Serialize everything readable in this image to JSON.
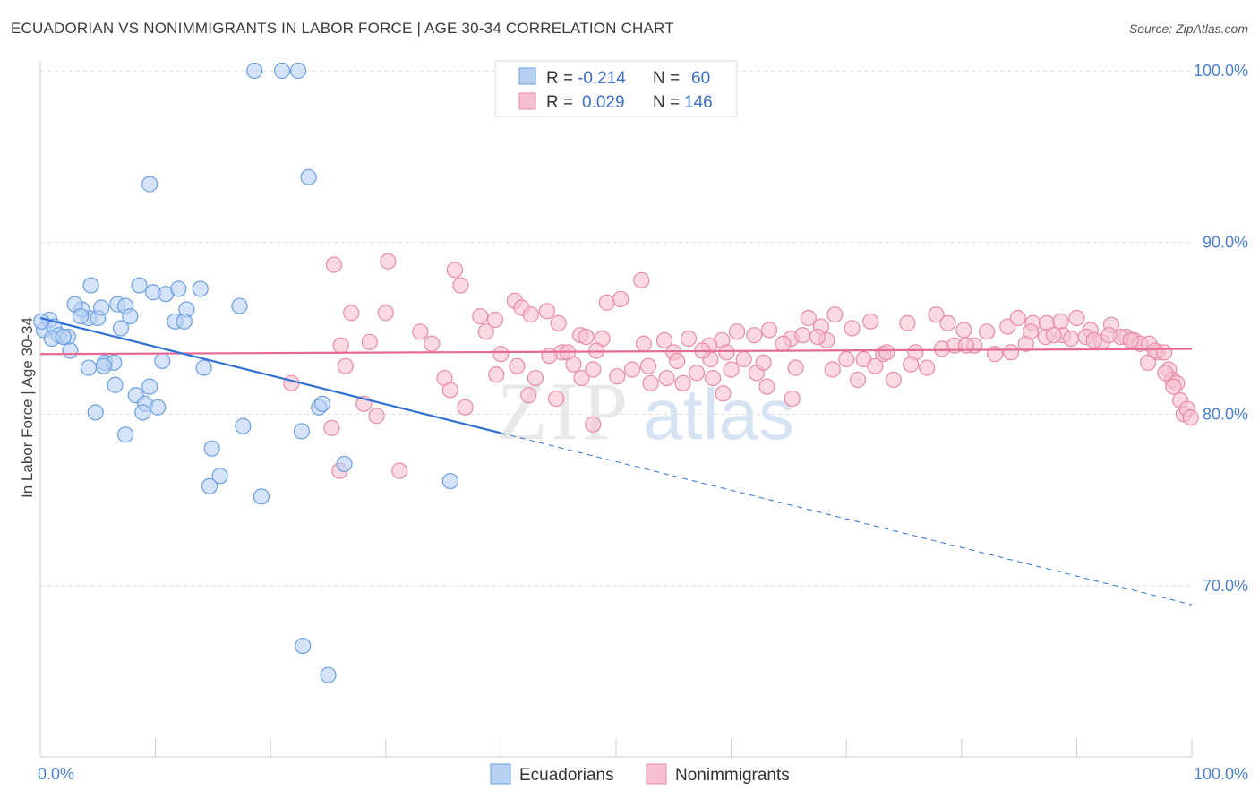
{
  "title": "ECUADORIAN VS NONIMMIGRANTS IN LABOR FORCE | AGE 30-34 CORRELATION CHART",
  "source": "Source: ZipAtlas.com",
  "watermark": {
    "zip": "ZIP",
    "atlas": "atlas"
  },
  "colors": {
    "blue_fill": "#b8d1f3",
    "blue_stroke": "#6a9ee0",
    "blue_line": "#2f6fd6",
    "pink_fill": "#f7bfd1",
    "pink_stroke": "#e68aa8",
    "pink_line": "#e46a92",
    "grid": "#dddddd",
    "tick_text": "#4a7fd0"
  },
  "legend": {
    "rows": [
      {
        "r_label": "R =",
        "r_value": "-0.214",
        "n_label": "N =",
        "n_value": "60",
        "series": "blue"
      },
      {
        "r_label": "R =",
        "r_value": "0.029",
        "n_label": "N =",
        "n_value": "146",
        "series": "pink"
      }
    ]
  },
  "bottom_legend": [
    "Ecuadorians",
    "Nonimmigrants"
  ],
  "chart_data": {
    "type": "scatter",
    "title": "ECUADORIAN VS NONIMMIGRANTS IN LABOR FORCE | AGE 30-34 CORRELATION CHART",
    "xlabel": "",
    "ylabel": "In Labor Force | Age 30-34",
    "xlim": [
      0,
      100
    ],
    "ylim": [
      61,
      104
    ],
    "x_tick_labels": [
      "0.0%",
      "100.0%"
    ],
    "y_ticks": [
      70,
      80,
      90,
      100
    ],
    "y_tick_labels": [
      "70.0%",
      "80.0%",
      "90.0%",
      "100.0%"
    ],
    "grid": true,
    "legend_position": "top-center",
    "series": [
      {
        "name": "Ecuadorians",
        "color": "#b8d1f3",
        "r": -0.214,
        "n": 60,
        "trend": {
          "x0": 0,
          "y0": 85.6,
          "x1": 40,
          "y1": 78.9,
          "dash_x1": 100,
          "dash_y1": 68.9
        },
        "points": [
          [
            0.3,
            84.9
          ],
          [
            0.8,
            85.5
          ],
          [
            1.2,
            85.1
          ],
          [
            1.6,
            84.6
          ],
          [
            2.4,
            84.5
          ],
          [
            1.0,
            84.4
          ],
          [
            2.6,
            83.7
          ],
          [
            4.2,
            85.6
          ],
          [
            3.6,
            86.1
          ],
          [
            3.0,
            86.4
          ],
          [
            3.5,
            85.7
          ],
          [
            4.4,
            87.5
          ],
          [
            5.0,
            85.6
          ],
          [
            5.3,
            86.2
          ],
          [
            6.7,
            86.4
          ],
          [
            7.4,
            86.3
          ],
          [
            7.8,
            85.7
          ],
          [
            7.0,
            85.0
          ],
          [
            8.6,
            87.5
          ],
          [
            9.8,
            87.1
          ],
          [
            10.9,
            87.0
          ],
          [
            12.0,
            87.3
          ],
          [
            13.9,
            87.3
          ],
          [
            12.7,
            86.1
          ],
          [
            11.7,
            85.4
          ],
          [
            12.5,
            85.4
          ],
          [
            4.2,
            82.7
          ],
          [
            5.6,
            83.0
          ],
          [
            6.4,
            83.0
          ],
          [
            5.5,
            82.8
          ],
          [
            6.5,
            81.7
          ],
          [
            8.3,
            81.1
          ],
          [
            9.1,
            80.6
          ],
          [
            9.5,
            81.6
          ],
          [
            8.9,
            80.1
          ],
          [
            10.2,
            80.4
          ],
          [
            4.8,
            80.1
          ],
          [
            7.4,
            78.8
          ],
          [
            10.6,
            83.1
          ],
          [
            14.2,
            82.7
          ],
          [
            17.3,
            86.3
          ],
          [
            14.9,
            78.0
          ],
          [
            17.6,
            79.3
          ],
          [
            15.6,
            76.4
          ],
          [
            14.7,
            75.8
          ],
          [
            19.2,
            75.2
          ],
          [
            22.7,
            79.0
          ],
          [
            24.2,
            80.4
          ],
          [
            24.5,
            80.6
          ],
          [
            26.4,
            77.1
          ],
          [
            35.6,
            76.1
          ],
          [
            9.5,
            93.4
          ],
          [
            23.3,
            93.8
          ],
          [
            18.6,
            100.0
          ],
          [
            21.0,
            100.0
          ],
          [
            22.4,
            100.0
          ],
          [
            22.8,
            66.5
          ],
          [
            25.0,
            64.8
          ],
          [
            0.1,
            85.4
          ],
          [
            2.0,
            84.5
          ]
        ]
      },
      {
        "name": "Nonimmigrants",
        "color": "#f7bfd1",
        "r": 0.029,
        "n": 146,
        "trend": {
          "x0": 0,
          "y0": 83.5,
          "x1": 100,
          "y1": 83.8
        },
        "points": [
          [
            25.5,
            88.7
          ],
          [
            30.2,
            88.9
          ],
          [
            36.0,
            88.4
          ],
          [
            36.5,
            87.5
          ],
          [
            52.2,
            87.8
          ],
          [
            27.0,
            85.9
          ],
          [
            30.0,
            85.9
          ],
          [
            38.2,
            85.7
          ],
          [
            39.5,
            85.5
          ],
          [
            41.2,
            86.6
          ],
          [
            41.8,
            86.2
          ],
          [
            44.0,
            86.0
          ],
          [
            49.2,
            86.5
          ],
          [
            50.4,
            86.7
          ],
          [
            33.0,
            84.8
          ],
          [
            34.0,
            84.1
          ],
          [
            38.7,
            84.8
          ],
          [
            42.6,
            85.8
          ],
          [
            45.0,
            85.3
          ],
          [
            45.3,
            83.6
          ],
          [
            46.9,
            84.6
          ],
          [
            47.4,
            84.5
          ],
          [
            48.8,
            84.4
          ],
          [
            54.2,
            84.3
          ],
          [
            56.3,
            84.4
          ],
          [
            59.2,
            84.3
          ],
          [
            60.5,
            84.8
          ],
          [
            62.0,
            84.6
          ],
          [
            63.3,
            84.9
          ],
          [
            65.2,
            84.4
          ],
          [
            66.7,
            85.6
          ],
          [
            67.8,
            85.1
          ],
          [
            70.5,
            85.0
          ],
          [
            69.0,
            85.8
          ],
          [
            72.1,
            85.4
          ],
          [
            75.3,
            85.3
          ],
          [
            77.8,
            85.8
          ],
          [
            78.8,
            85.3
          ],
          [
            80.2,
            84.9
          ],
          [
            82.2,
            84.8
          ],
          [
            84.0,
            85.1
          ],
          [
            84.9,
            85.6
          ],
          [
            86.2,
            85.3
          ],
          [
            87.4,
            85.3
          ],
          [
            88.6,
            85.4
          ],
          [
            90.0,
            85.6
          ],
          [
            91.2,
            84.9
          ],
          [
            93.0,
            85.2
          ],
          [
            94.3,
            84.5
          ],
          [
            95.0,
            84.3
          ],
          [
            26.1,
            84.0
          ],
          [
            28.6,
            84.2
          ],
          [
            40.0,
            83.5
          ],
          [
            44.2,
            83.4
          ],
          [
            45.8,
            83.6
          ],
          [
            48.3,
            83.7
          ],
          [
            52.4,
            84.1
          ],
          [
            55.0,
            83.6
          ],
          [
            58.1,
            84.0
          ],
          [
            59.6,
            83.6
          ],
          [
            64.5,
            84.1
          ],
          [
            66.2,
            84.6
          ],
          [
            68.3,
            84.3
          ],
          [
            71.5,
            83.2
          ],
          [
            73.2,
            83.5
          ],
          [
            76.0,
            83.6
          ],
          [
            78.3,
            83.8
          ],
          [
            79.4,
            84.0
          ],
          [
            81.1,
            84.0
          ],
          [
            82.9,
            83.5
          ],
          [
            84.3,
            83.6
          ],
          [
            85.6,
            84.1
          ],
          [
            87.3,
            84.5
          ],
          [
            88.8,
            84.6
          ],
          [
            90.8,
            84.5
          ],
          [
            92.2,
            84.2
          ],
          [
            93.8,
            84.5
          ],
          [
            95.5,
            84.1
          ],
          [
            96.3,
            84.1
          ],
          [
            97.0,
            83.6
          ],
          [
            26.5,
            82.8
          ],
          [
            35.1,
            82.1
          ],
          [
            35.6,
            81.4
          ],
          [
            39.6,
            82.3
          ],
          [
            41.4,
            82.8
          ],
          [
            42.4,
            81.1
          ],
          [
            43.0,
            82.1
          ],
          [
            46.3,
            82.9
          ],
          [
            47.0,
            82.1
          ],
          [
            48.0,
            82.6
          ],
          [
            50.1,
            82.2
          ],
          [
            51.4,
            82.6
          ],
          [
            52.8,
            82.8
          ],
          [
            54.4,
            82.1
          ],
          [
            55.8,
            81.8
          ],
          [
            57.0,
            82.4
          ],
          [
            58.2,
            83.2
          ],
          [
            60.0,
            82.6
          ],
          [
            61.1,
            83.2
          ],
          [
            62.2,
            82.4
          ],
          [
            63.1,
            81.6
          ],
          [
            65.6,
            82.7
          ],
          [
            68.8,
            82.6
          ],
          [
            70.0,
            83.2
          ],
          [
            71.0,
            82.0
          ],
          [
            72.5,
            82.8
          ],
          [
            74.1,
            82.0
          ],
          [
            75.6,
            82.9
          ],
          [
            77.0,
            82.7
          ],
          [
            36.9,
            80.4
          ],
          [
            44.8,
            80.9
          ],
          [
            48.0,
            79.4
          ],
          [
            53.0,
            81.8
          ],
          [
            59.3,
            81.2
          ],
          [
            65.3,
            80.9
          ],
          [
            21.8,
            81.8
          ],
          [
            25.3,
            79.2
          ],
          [
            28.1,
            80.6
          ],
          [
            29.2,
            79.9
          ],
          [
            26.0,
            76.7
          ],
          [
            31.2,
            76.7
          ],
          [
            96.2,
            83.0
          ],
          [
            96.8,
            83.7
          ],
          [
            97.6,
            83.6
          ],
          [
            98.0,
            82.6
          ],
          [
            98.3,
            82.0
          ],
          [
            98.7,
            81.8
          ],
          [
            99.0,
            80.8
          ],
          [
            99.3,
            80.0
          ],
          [
            99.6,
            80.3
          ],
          [
            99.9,
            79.8
          ],
          [
            97.7,
            82.4
          ],
          [
            98.4,
            81.6
          ],
          [
            58.4,
            82.1
          ],
          [
            73.5,
            83.6
          ],
          [
            62.8,
            83.0
          ],
          [
            67.5,
            84.5
          ],
          [
            80.4,
            84.0
          ],
          [
            86.0,
            84.8
          ],
          [
            88.0,
            84.6
          ],
          [
            89.5,
            84.4
          ],
          [
            91.5,
            84.3
          ],
          [
            92.8,
            84.6
          ],
          [
            94.7,
            84.3
          ],
          [
            55.3,
            83.1
          ],
          [
            57.5,
            83.7
          ]
        ]
      }
    ]
  }
}
